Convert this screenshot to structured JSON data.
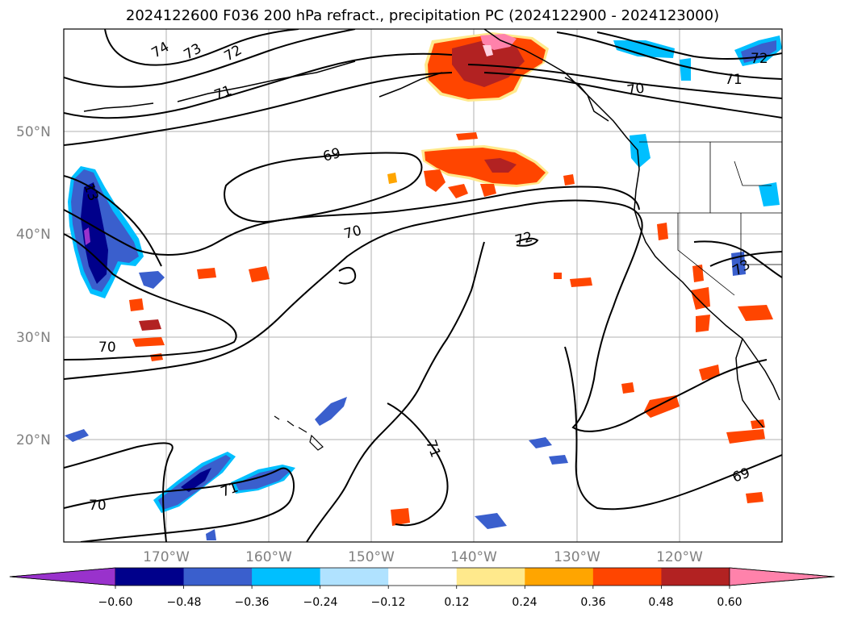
{
  "title": "2024122600 F036 200 hPa refract., precipitation PC (2024122900 - 2024123000)",
  "lat_labels": [
    "50°N",
    "40°N",
    "30°N",
    "20°N"
  ],
  "lon_labels": [
    "170°W",
    "160°W",
    "150°W",
    "140°W",
    "130°W",
    "120°W"
  ],
  "contour_labels": [
    "74",
    "73",
    "72",
    "71",
    "69",
    "70",
    "13",
    "72",
    "70",
    "71",
    "72",
    "71",
    "69",
    "70",
    "70",
    "71",
    "72",
    "73"
  ],
  "colorbar": {
    "ticks": [
      "−0.60",
      "−0.48",
      "−0.36",
      "−0.24",
      "−0.12",
      "0.12",
      "0.24",
      "0.36",
      "0.48",
      "0.60"
    ],
    "colors": [
      "#9932cc",
      "#00008b",
      "#3a5fcd",
      "#00bfff",
      "#b0e2ff",
      "#ffffff",
      "#ffe98c",
      "#ffa500",
      "#ff4500",
      "#b22222",
      "#ff82ab"
    ]
  },
  "colors": {
    "coast": "#000000",
    "grid": "#b0b0b0",
    "contour": "#000000"
  }
}
